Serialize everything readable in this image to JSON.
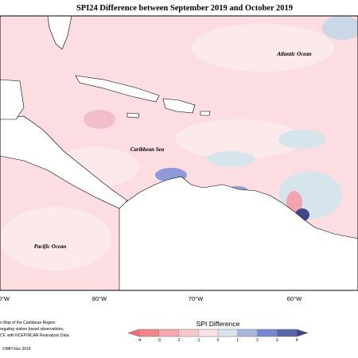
{
  "title": "SPI24 Difference between September 2019 and October 2019",
  "labels": {
    "atlantic": "Atlantic Ocean",
    "caribbean": "Caribbean Sea",
    "pacific": "Pacific Ocean"
  },
  "longitudes": [
    "0°W",
    "80°W",
    "70°W",
    "60°W"
  ],
  "footer": [
    "n Map of the Caribbean Region",
    "regating station based observations,",
    "CF, with NCEP/NCAR Reanalysis Data."
  ],
  "credit": "CIMH Nov 2019",
  "legend": {
    "title": "SPI Difference",
    "ticks": [
      -4,
      -3,
      -2,
      -1,
      0,
      1,
      2,
      3,
      4
    ],
    "colors": [
      "#f4858e",
      "#f6a8ae",
      "#f9c8cc",
      "#fde3e6",
      "#d7e6ec",
      "#a9b6e0",
      "#7a88cc",
      "#5a67a8"
    ],
    "under_color": "#f06e7a",
    "over_color": "#3d4689"
  }
}
